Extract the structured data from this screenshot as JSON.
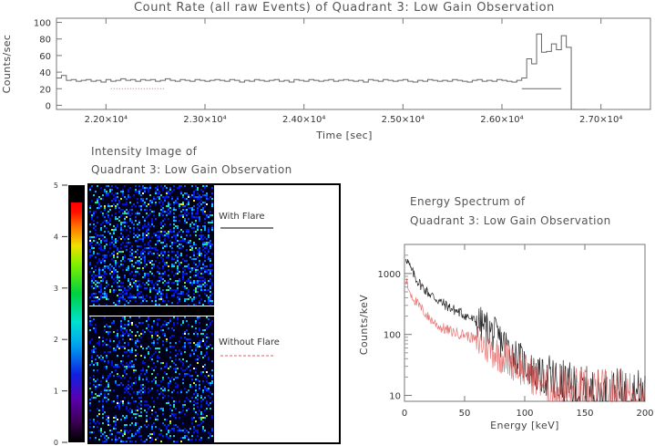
{
  "chart_data": [
    {
      "type": "line",
      "title": "Count Rate (all raw Events) of Quadrant 3:  Low Gain Observation",
      "xlabel": "Time [sec]",
      "ylabel": "Counts/sec",
      "xlim": [
        21500,
        27500
      ],
      "ylim": [
        -5,
        105
      ],
      "xticks": [
        22000,
        23000,
        24000,
        25000,
        26000,
        27000
      ],
      "xtick_labels": [
        "2.20×10⁴",
        "2.30×10⁴",
        "2.40×10⁴",
        "2.50×10⁴",
        "2.60×10⁴",
        "2.70×10⁴"
      ],
      "yticks": [
        0,
        20,
        40,
        60,
        80,
        100
      ],
      "ytick_labels": [
        "0",
        "20",
        "40",
        "60",
        "80",
        "100"
      ],
      "grid": false,
      "series": [
        {
          "color": "#666666",
          "style": "histogram",
          "x": [
            21500,
            21550,
            21600,
            21650,
            21700,
            21750,
            21800,
            21850,
            21900,
            21950,
            22000,
            22050,
            22100,
            22150,
            22200,
            22250,
            22300,
            22350,
            22400,
            22450,
            22500,
            22550,
            22600,
            22650,
            22700,
            22750,
            22800,
            22850,
            22900,
            22950,
            23000,
            23050,
            23100,
            23150,
            23200,
            23250,
            23300,
            23350,
            23400,
            23450,
            23500,
            23550,
            23600,
            23650,
            23700,
            23750,
            23800,
            23850,
            23900,
            23950,
            24000,
            24050,
            24100,
            24150,
            24200,
            24250,
            24300,
            24350,
            24400,
            24450,
            24500,
            24550,
            24600,
            24650,
            24700,
            24750,
            24800,
            24850,
            24900,
            24950,
            25000,
            25050,
            25100,
            25150,
            25200,
            25250,
            25300,
            25350,
            25400,
            25450,
            25500,
            25550,
            25600,
            25650,
            25700,
            25750,
            25800,
            25850,
            25900,
            25950,
            26000,
            26050,
            26100,
            26150,
            26200,
            26250,
            26300,
            26350,
            26400,
            26450,
            26500,
            26550,
            26600,
            26650,
            26700,
            26750,
            26800
          ],
          "y": [
            33,
            36,
            30,
            31,
            29,
            30,
            31,
            29,
            30,
            28,
            31,
            29,
            30,
            32,
            30,
            31,
            29,
            31,
            30,
            31,
            29,
            30,
            32,
            30,
            29,
            31,
            30,
            29,
            31,
            30,
            29,
            30,
            31,
            30,
            29,
            31,
            30,
            28,
            30,
            29,
            31,
            30,
            29,
            30,
            31,
            29,
            30,
            28,
            31,
            30,
            29,
            31,
            30,
            29,
            30,
            31,
            29,
            30,
            31,
            30,
            29,
            30,
            28,
            31,
            30,
            29,
            31,
            30,
            29,
            30,
            31,
            29,
            28,
            30,
            29,
            31,
            30,
            29,
            30,
            29,
            31,
            30,
            29,
            28,
            30,
            31,
            29,
            30,
            29,
            31,
            30,
            29,
            28,
            30,
            33,
            56,
            50,
            86,
            64,
            65,
            74,
            67,
            84,
            70,
            -5,
            -5,
            -5
          ]
        },
        {
          "color": "#666666",
          "style": "segment",
          "x": [
            26200,
            26600
          ],
          "y": [
            20,
            20
          ]
        },
        {
          "color": "#e06060",
          "style": "segment-dotted",
          "x": [
            22050,
            22600
          ],
          "y": [
            20,
            20
          ]
        }
      ]
    },
    {
      "type": "heatmap",
      "title_lines": [
        "Intensity Image of",
        "Quadrant 3:  Low Gain Observation"
      ],
      "colorbar_ticks": [
        "0",
        "1",
        "2",
        "3",
        "4",
        "5"
      ],
      "panels": [
        {
          "label": "With Flare",
          "label_line_color": "#000000",
          "density": 0.32
        },
        {
          "label": "Without Flare",
          "label_line_color": "#e06060",
          "density": 0.22
        }
      ]
    },
    {
      "type": "line",
      "title_lines": [
        "Energy Spectrum of",
        "Quadrant 3:  Low Gain Observation"
      ],
      "xlabel": "Energy [keV]",
      "ylabel": "Counts/keV",
      "xlim": [
        0,
        200
      ],
      "ylim": [
        8,
        3000
      ],
      "yscale": "log",
      "xticks": [
        0,
        50,
        100,
        150,
        200
      ],
      "xtick_labels": [
        "0",
        "50",
        "100",
        "150",
        "200"
      ],
      "yticks": [
        10,
        100,
        1000
      ],
      "ytick_labels": [
        "10",
        "100",
        "1000"
      ],
      "grid": false,
      "series": [
        {
          "color": "#111111",
          "x": [
            1,
            3,
            5,
            10,
            15,
            20,
            30,
            40,
            50,
            60,
            70,
            80,
            90,
            100,
            110,
            120,
            130,
            140,
            150,
            160,
            180,
            200
          ],
          "y": [
            1900,
            1500,
            1200,
            800,
            600,
            480,
            340,
            260,
            210,
            160,
            120,
            80,
            50,
            32,
            22,
            18,
            14,
            12,
            11,
            10,
            10,
            10
          ]
        },
        {
          "color": "#e06060",
          "x": [
            1,
            3,
            5,
            10,
            15,
            20,
            30,
            40,
            50,
            60,
            70,
            80,
            90,
            100,
            110,
            120,
            130,
            140,
            150,
            160,
            180,
            200
          ],
          "y": [
            800,
            600,
            480,
            330,
            250,
            190,
            130,
            110,
            100,
            80,
            60,
            45,
            35,
            25,
            18,
            14,
            12,
            11,
            10,
            10,
            10,
            10
          ]
        }
      ]
    }
  ]
}
